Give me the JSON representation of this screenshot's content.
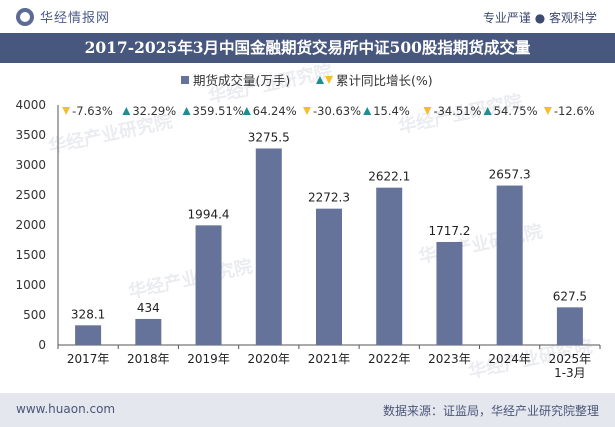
{
  "header": {
    "brand": "华经情报网",
    "tagline": "专业严谨 ● 客观科学"
  },
  "title": "2017-2025年3月中国金融期货交易所中证500股指期货成交量",
  "watermark": "华经产业研究院",
  "footer": {
    "url": "www.huaon.com",
    "source": "数据来源：证监局，华经产业研究院整理"
  },
  "colors": {
    "bar": "#65739a",
    "up": "#1c8f92",
    "down": "#f2c029",
    "title_bg": "#47577e",
    "footer_bg": "#e5e7ee"
  },
  "chart_data": {
    "type": "bar",
    "categories": [
      "2017年",
      "2018年",
      "2019年",
      "2020年",
      "2021年",
      "2022年",
      "2023年",
      "2024年",
      "2025年\n1-3月"
    ],
    "series": [
      {
        "name": "期货成交量(万手)",
        "values": [
          328.1,
          434,
          1994.4,
          3275.5,
          2272.3,
          2622.1,
          1717.2,
          2657.3,
          627.5
        ]
      },
      {
        "name": "累计同比增长(%)",
        "values": [
          -7.63,
          32.29,
          359.51,
          64.24,
          -30.63,
          15.4,
          -34.51,
          54.75,
          -12.6
        ]
      }
    ],
    "value_labels": [
      "328.1",
      "434",
      "1994.4",
      "3275.5",
      "2272.3",
      "2622.1",
      "1717.2",
      "2657.3",
      "627.5"
    ],
    "growth_labels": [
      "-7.63%",
      "32.29%",
      "359.51%",
      "64.24%",
      "-30.63%",
      "15.4%",
      "-34.51%",
      "54.75%",
      "-12.6%"
    ],
    "ylim": [
      0,
      4000
    ],
    "yticks": [
      0,
      500,
      1000,
      1500,
      2000,
      2500,
      3000,
      3500,
      4000
    ],
    "legend_position": "top-center",
    "grid": false
  }
}
